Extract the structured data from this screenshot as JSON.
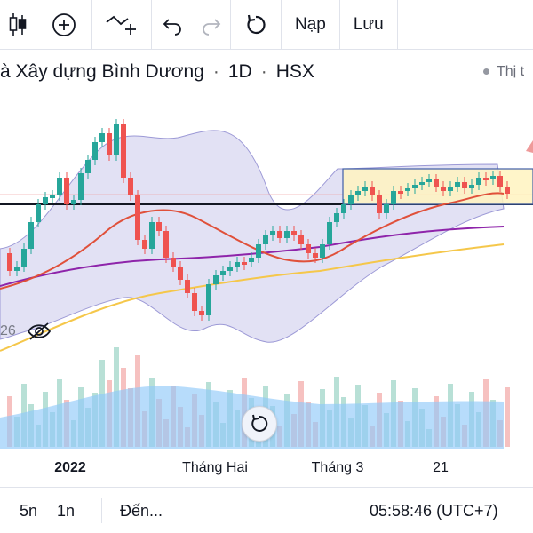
{
  "toolbar": {
    "icons": [
      "candlestick-icon",
      "add-indicator-icon",
      "compare-line-icon",
      "undo-icon",
      "redo-icon",
      "refresh-icon"
    ],
    "load_label": "Nạp",
    "save_label": "Lưu"
  },
  "symbol": {
    "name": "à Xây dựng Bình Dương",
    "interval": "1D",
    "exchange": "HSX",
    "status": "Thị t"
  },
  "chart": {
    "indicator_value": "26",
    "time_labels": [
      "2022",
      "Tháng Hai",
      "Tháng 3",
      "21"
    ],
    "colors": {
      "up": "#26a69a",
      "down": "#ef5350",
      "ma_short": "#e0503a",
      "ma_mid": "#8e24aa",
      "ma_long": "#f5c74a",
      "bollinger_fill": "#d6d4f0",
      "bollinger_line": "#9c99d6",
      "volume": "#90caf9",
      "box_fill": "#fff3c0",
      "box_border": "#3f5ea8"
    }
  },
  "bottom_bar": {
    "range_5y": "5n",
    "range_1y": "1n",
    "goto": "Đến...",
    "clock": "05:58:46 (UTC+7)"
  }
}
